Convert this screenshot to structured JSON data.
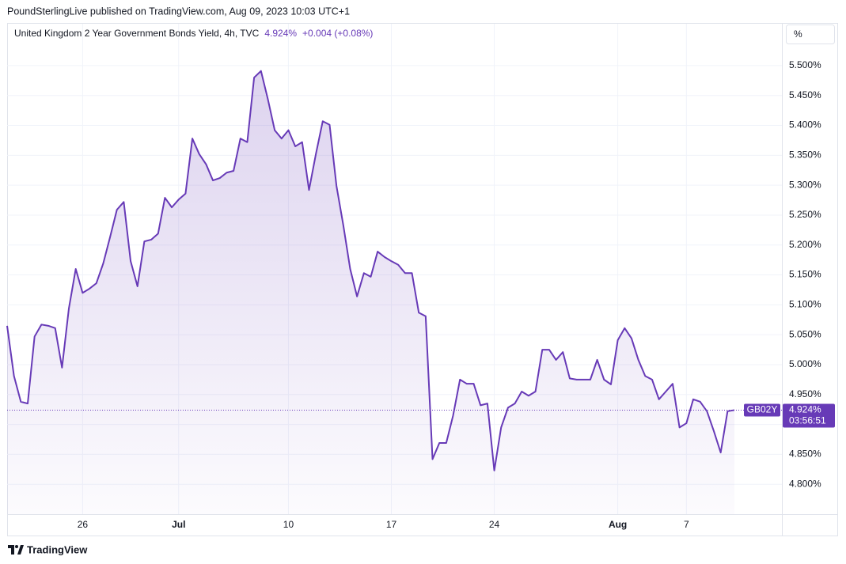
{
  "header": "PoundSterlingLive published on TradingView.com, Aug 09, 2023 10:03 UTC+1",
  "footer": "TradingView",
  "chart_data": {
    "type": "area",
    "title": "United Kingdom 2 Year Government Bonds Yield, 4h, TVC",
    "change": "+0.004 (+0.08%)",
    "unit_button": "%",
    "symbol": "GB02Y",
    "countdown": "03:56:51",
    "last_value": {
      "value": 4.924,
      "label": "4.924%"
    },
    "color": "#673ab7",
    "grid": true,
    "ylim": [
      4.75,
      5.57
    ],
    "yticks": [
      {
        "value": 4.8,
        "label": "4.800%"
      },
      {
        "value": 4.85,
        "label": "4.850%"
      },
      {
        "value": 4.9,
        "label": "4.900%"
      },
      {
        "value": 4.95,
        "label": "4.950%"
      },
      {
        "value": 5.0,
        "label": "5.000%"
      },
      {
        "value": 5.05,
        "label": "5.050%"
      },
      {
        "value": 5.1,
        "label": "5.100%"
      },
      {
        "value": 5.15,
        "label": "5.150%"
      },
      {
        "value": 5.2,
        "label": "5.200%"
      },
      {
        "value": 5.25,
        "label": "5.250%"
      },
      {
        "value": 5.3,
        "label": "5.300%"
      },
      {
        "value": 5.35,
        "label": "5.350%"
      },
      {
        "value": 5.4,
        "label": "5.400%"
      },
      {
        "value": 5.45,
        "label": "5.450%"
      },
      {
        "value": 5.5,
        "label": "5.500%"
      }
    ],
    "categories": [
      null,
      null,
      null,
      null,
      null,
      null,
      null,
      null,
      null,
      null,
      null,
      "26",
      null,
      null,
      null,
      null,
      null,
      null,
      null,
      null,
      null,
      null,
      null,
      null,
      null,
      "Jul",
      null,
      null,
      null,
      null,
      null,
      null,
      null,
      null,
      null,
      null,
      null,
      null,
      null,
      null,
      null,
      "10",
      null,
      null,
      null,
      null,
      null,
      null,
      null,
      null,
      null,
      null,
      null,
      null,
      null,
      null,
      "17",
      null,
      null,
      null,
      null,
      null,
      null,
      null,
      null,
      null,
      null,
      null,
      null,
      null,
      null,
      "24",
      null,
      null,
      null,
      null,
      null,
      null,
      null,
      null,
      null,
      null,
      null,
      null,
      null,
      null,
      null,
      null,
      null,
      "Aug",
      null,
      null,
      null,
      null,
      null,
      null,
      null,
      null,
      null,
      "7",
      null,
      null,
      null,
      null,
      null,
      null,
      null
    ],
    "values": [
      5.065,
      4.981,
      4.938,
      4.935,
      5.047,
      5.067,
      5.065,
      5.061,
      4.995,
      5.094,
      5.16,
      5.12,
      5.127,
      5.136,
      5.169,
      5.213,
      5.259,
      5.272,
      5.173,
      5.131,
      5.206,
      5.209,
      5.219,
      5.279,
      5.263,
      5.276,
      5.286,
      5.378,
      5.352,
      5.335,
      5.308,
      5.312,
      5.321,
      5.324,
      5.378,
      5.372,
      5.48,
      5.491,
      5.444,
      5.392,
      5.378,
      5.392,
      5.365,
      5.372,
      5.292,
      5.352,
      5.407,
      5.401,
      5.299,
      5.233,
      5.16,
      5.114,
      5.153,
      5.147,
      5.189,
      5.18,
      5.173,
      5.167,
      5.153,
      5.153,
      5.087,
      5.081,
      4.842,
      4.869,
      4.869,
      4.915,
      4.975,
      4.968,
      4.968,
      4.932,
      4.935,
      4.823,
      4.895,
      4.928,
      4.935,
      4.955,
      4.948,
      4.955,
      5.025,
      5.025,
      5.008,
      5.021,
      4.977,
      4.975,
      4.975,
      4.975,
      5.008,
      4.975,
      4.967,
      5.041,
      5.061,
      5.044,
      5.008,
      4.981,
      4.975,
      4.942,
      4.955,
      4.968,
      4.895,
      4.902,
      4.942,
      4.938,
      4.922,
      4.889,
      4.853,
      4.922,
      4.924
    ]
  }
}
